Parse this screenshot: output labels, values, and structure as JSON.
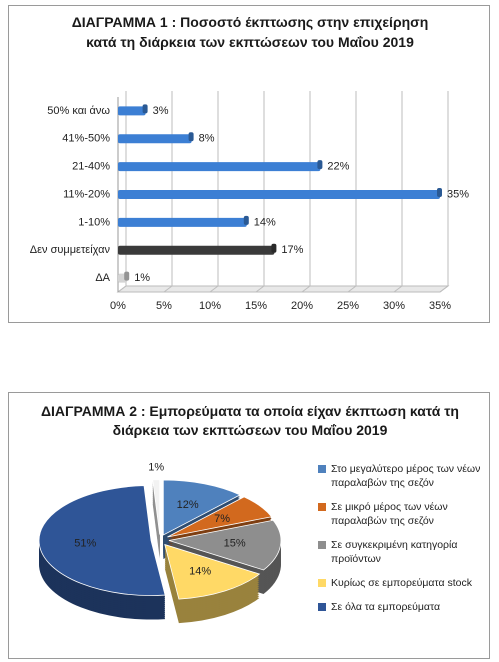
{
  "chart_data": [
    {
      "type": "bar",
      "orientation": "horizontal",
      "title": "ΔΙΑΓΡΑΜΜΑ 1 : Ποσοστό έκπτωσης στην επιχείρηση κατά τη διάρκεια των εκπτώσεων του Μαΐου 2019",
      "categories": [
        "50% και άνω",
        "41%-50%",
        "21-40%",
        "11%-20%",
        "1-10%",
        "Δεν συμμετείχαν",
        "ΔΑ"
      ],
      "values": [
        3,
        8,
        22,
        35,
        14,
        17,
        1
      ],
      "value_labels": [
        "3%",
        "8%",
        "22%",
        "35%",
        "14%",
        "17%",
        "1%"
      ],
      "colors": [
        "#3c7fd4",
        "#3c7fd4",
        "#3c7fd4",
        "#3c7fd4",
        "#3c7fd4",
        "#3a3a3a",
        "#d4d4d4"
      ],
      "xlim": [
        0,
        35
      ],
      "xticks": [
        {
          "value": 0,
          "label": "0%"
        },
        {
          "value": 5,
          "label": "5%"
        },
        {
          "value": 10,
          "label": "10%"
        },
        {
          "value": 15,
          "label": "15%"
        },
        {
          "value": 20,
          "label": "20%"
        },
        {
          "value": 25,
          "label": "25%"
        },
        {
          "value": 30,
          "label": "30%"
        },
        {
          "value": 35,
          "label": "35%"
        }
      ],
      "grid": true
    },
    {
      "type": "pie",
      "title": "ΔΙΑΓΡΑΜΜΑ 2 : Εμπορεύματα τα οποία είχαν έκπτωση κατά τη διάρκεια των εκπτώσεων του Μαΐου 2019",
      "categories": [
        "Στο μεγαλύτερο μέρος των νέων παραλαβών της σεζόν",
        "Σε μικρό μέρος των νέων παραλαβών της σεζόν",
        "Σε συγκεκριμένη κατηγορία προϊόντων",
        "Κυρίως σε εμπορεύματα stock",
        "Σε όλα τα εμπορεύματα",
        null
      ],
      "values": [
        12,
        7,
        15,
        14,
        51,
        1
      ],
      "value_labels": [
        "12%",
        "7%",
        "15%",
        "14%",
        "51%",
        "1%"
      ],
      "colors": [
        "#4f81bd",
        "#d2691e",
        "#8e8e8e",
        "#ffd966",
        "#2f5597",
        "#f2f2f2"
      ]
    }
  ]
}
